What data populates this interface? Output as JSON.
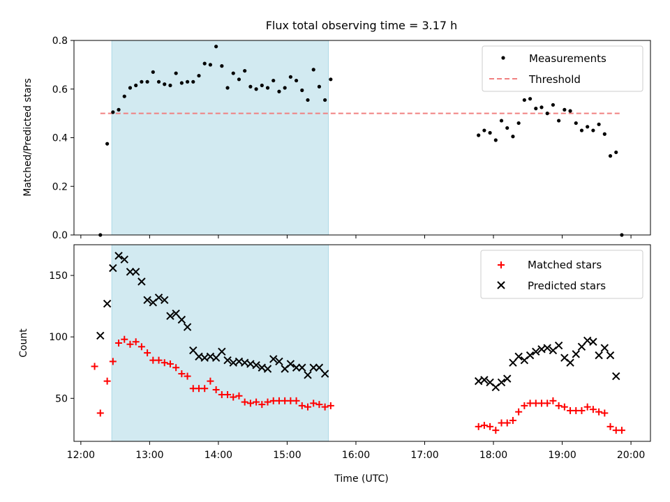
{
  "title": "Flux total observing time = 3.17 h",
  "colors": {
    "measurements": "#000000",
    "threshold": "#f08080",
    "matched": "#ff0000",
    "predicted": "#000000",
    "observing_window": "#add8e6"
  },
  "chart_data": [
    {
      "type": "scatter",
      "ylabel": "Matched/Predicted stars",
      "ylim": [
        0,
        0.8
      ],
      "yticks": [
        0.0,
        0.2,
        0.4,
        0.6,
        0.8
      ],
      "ytick_labels": [
        "0.0",
        "0.2",
        "0.4",
        "0.6",
        "0.8"
      ],
      "xlim": [
        "11:54",
        "20:17"
      ],
      "shaded_region": [
        "12:27",
        "15:36"
      ],
      "legend": {
        "placement": "top-right",
        "entries": [
          "Measurements",
          "Threshold"
        ]
      },
      "threshold": {
        "name": "Threshold",
        "value": 0.5,
        "x": [
          "12:17",
          "19:52"
        ]
      },
      "series": [
        {
          "name": "Measurements",
          "x": [
            "12:17",
            "12:23",
            "12:28",
            "12:33",
            "12:38",
            "12:43",
            "12:48",
            "12:53",
            "12:58",
            "13:03",
            "13:08",
            "13:13",
            "13:18",
            "13:23",
            "13:28",
            "13:33",
            "13:38",
            "13:43",
            "13:48",
            "13:53",
            "13:58",
            "14:03",
            "14:08",
            "14:13",
            "14:18",
            "14:23",
            "14:28",
            "14:33",
            "14:38",
            "14:43",
            "14:48",
            "14:53",
            "14:58",
            "15:03",
            "15:08",
            "15:13",
            "15:18",
            "15:23",
            "15:28",
            "15:33",
            "15:38",
            "17:47",
            "17:52",
            "17:57",
            "18:02",
            "18:07",
            "18:12",
            "18:17",
            "18:22",
            "18:27",
            "18:32",
            "18:37",
            "18:42",
            "18:47",
            "18:52",
            "18:57",
            "19:02",
            "19:07",
            "19:12",
            "19:17",
            "19:22",
            "19:27",
            "19:32",
            "19:37",
            "19:42",
            "19:47",
            "19:52"
          ],
          "values": [
            0.0,
            0.375,
            0.505,
            0.515,
            0.57,
            0.605,
            0.615,
            0.63,
            0.63,
            0.67,
            0.63,
            0.62,
            0.615,
            0.665,
            0.625,
            0.63,
            0.63,
            0.655,
            0.705,
            0.7,
            0.775,
            0.695,
            0.605,
            0.665,
            0.64,
            0.675,
            0.61,
            0.6,
            0.615,
            0.605,
            0.635,
            0.59,
            0.605,
            0.65,
            0.635,
            0.595,
            0.555,
            0.68,
            0.61,
            0.555,
            0.64,
            0.41,
            0.43,
            0.42,
            0.39,
            0.47,
            0.44,
            0.405,
            0.46,
            0.555,
            0.56,
            0.52,
            0.525,
            0.5,
            0.535,
            0.47,
            0.515,
            0.51,
            0.46,
            0.43,
            0.445,
            0.43,
            0.455,
            0.415,
            0.325,
            0.34,
            0.0
          ]
        }
      ]
    },
    {
      "type": "scatter",
      "xlabel": "Time (UTC)",
      "ylabel": "Count",
      "ylim": [
        15,
        175
      ],
      "yticks": [
        50,
        100,
        150
      ],
      "ytick_labels": [
        "50",
        "100",
        "150"
      ],
      "xlim": [
        "11:54",
        "20:17"
      ],
      "xticks": [
        "12:00",
        "13:00",
        "14:00",
        "15:00",
        "16:00",
        "17:00",
        "18:00",
        "19:00",
        "20:00"
      ],
      "shaded_region": [
        "12:27",
        "15:36"
      ],
      "legend": {
        "placement": "top-right",
        "entries": [
          "Matched stars",
          "Predicted stars"
        ]
      },
      "x": [
        "12:12",
        "12:17",
        "12:23",
        "12:28",
        "12:33",
        "12:38",
        "12:43",
        "12:48",
        "12:53",
        "12:58",
        "13:03",
        "13:08",
        "13:13",
        "13:18",
        "13:23",
        "13:28",
        "13:33",
        "13:38",
        "13:43",
        "13:48",
        "13:53",
        "13:58",
        "14:03",
        "14:08",
        "14:13",
        "14:18",
        "14:23",
        "14:28",
        "14:33",
        "14:38",
        "14:43",
        "14:48",
        "14:53",
        "14:58",
        "15:03",
        "15:08",
        "15:13",
        "15:18",
        "15:23",
        "15:28",
        "15:33",
        "15:38",
        "17:47",
        "17:52",
        "17:57",
        "18:02",
        "18:07",
        "18:12",
        "18:17",
        "18:22",
        "18:27",
        "18:32",
        "18:37",
        "18:42",
        "18:47",
        "18:52",
        "18:57",
        "19:02",
        "19:07",
        "19:12",
        "19:17",
        "19:22",
        "19:27",
        "19:32",
        "19:37",
        "19:42",
        "19:47",
        "19:52"
      ],
      "series": [
        {
          "name": "Matched stars",
          "marker": "plus",
          "values": [
            76,
            38,
            64,
            80,
            95,
            98,
            94,
            96,
            92,
            87,
            81,
            81,
            79,
            78,
            75,
            70,
            68,
            58,
            58,
            58,
            64,
            57,
            53,
            53,
            51,
            52,
            47,
            46,
            47,
            45,
            47,
            48,
            48,
            48,
            48,
            48,
            44,
            43,
            46,
            45,
            43,
            44,
            27,
            28,
            27,
            24,
            30,
            30,
            32,
            39,
            44,
            46,
            46,
            46,
            46,
            48,
            44,
            43,
            40,
            40,
            40,
            43,
            41,
            39,
            38,
            27,
            24,
            24
          ]
        },
        {
          "name": "Predicted stars",
          "marker": "x",
          "values": [
            null,
            101,
            127,
            156,
            166,
            163,
            153,
            153,
            145,
            130,
            128,
            132,
            130,
            117,
            119,
            114,
            108,
            89,
            84,
            83,
            84,
            83,
            88,
            81,
            79,
            80,
            79,
            78,
            77,
            75,
            74,
            82,
            80,
            74,
            78,
            75,
            75,
            69,
            75,
            75,
            70,
            null,
            64,
            65,
            63,
            59,
            63,
            66,
            79,
            84,
            81,
            85,
            88,
            90,
            91,
            89,
            93,
            83,
            79,
            86,
            92,
            97,
            96,
            85,
            91,
            85,
            68,
            null
          ]
        }
      ]
    }
  ]
}
